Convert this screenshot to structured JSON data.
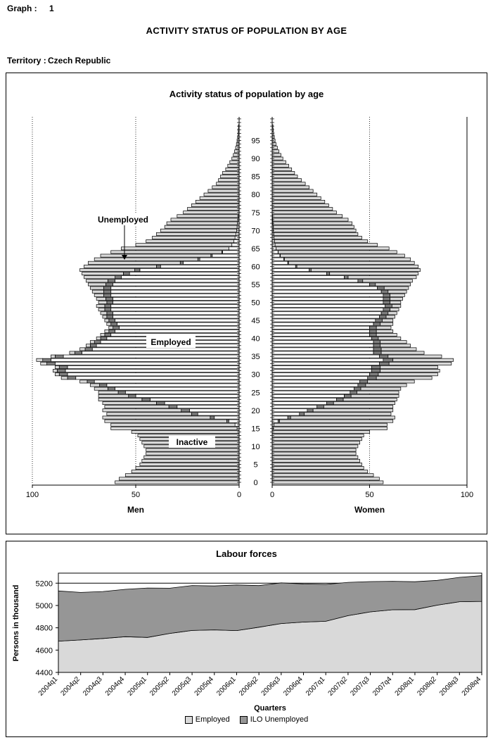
{
  "header": {
    "graph_label": "Graph :",
    "graph_number": "1",
    "main_title": "ACTIVITY STATUS OF POPULATION BY AGE",
    "territory_label": "Territory :",
    "territory_value": "Czech Republic"
  },
  "colors": {
    "inactive_fill": "#D9D9D9",
    "employed_fill": "#FFFFFF",
    "unemployed_fill": "#7F7F7F",
    "area_employed": "#D9D9D9",
    "area_unemployed": "#969696",
    "outline": "#000000"
  },
  "chart_data": [
    {
      "type": "bar",
      "subtype": "population-pyramid-stacked",
      "title": "Activity status of population by age",
      "left_label": "Men",
      "right_label": "Women",
      "value_ticks": [
        0,
        50,
        100
      ],
      "xlim": [
        0,
        100
      ],
      "age_min": 0,
      "age_max": 99,
      "age_label_step": 5,
      "age_labels": [
        0,
        5,
        10,
        15,
        20,
        25,
        30,
        35,
        40,
        45,
        50,
        55,
        60,
        65,
        70,
        75,
        80,
        85,
        90,
        95
      ],
      "annotations": [
        "Unemployed",
        "Employed",
        "Inactive"
      ],
      "units": "thousands of persons",
      "men": {
        "total": [
          60,
          58,
          55,
          52,
          50,
          48,
          47,
          46,
          45,
          45,
          46,
          47,
          48,
          49,
          52,
          62,
          62,
          65,
          66,
          64,
          66,
          65,
          66,
          68,
          68,
          68,
          70,
          72,
          77,
          86,
          89,
          90,
          89,
          96,
          98,
          91,
          82,
          77,
          74,
          72,
          69,
          67,
          65,
          63,
          64,
          65,
          66,
          67,
          68,
          69,
          68,
          69,
          70,
          71,
          72,
          73,
          74,
          75,
          76,
          77,
          75,
          73,
          70,
          67,
          62,
          57,
          50,
          45,
          42,
          40,
          38,
          36,
          35,
          33,
          30,
          27,
          25,
          23,
          21,
          19,
          17,
          15,
          13,
          11,
          10,
          9,
          8,
          6.5,
          5.5,
          4.5,
          3.5,
          2.8,
          2.2,
          1.7,
          1.3,
          1,
          0.7,
          0.5,
          0.4,
          0.3
        ],
        "employed": [
          0,
          0,
          0,
          0,
          0,
          0,
          0,
          0,
          0,
          0,
          0,
          0,
          0,
          0,
          0,
          1,
          2,
          5,
          12,
          20,
          24,
          30,
          36,
          43,
          50,
          55,
          60,
          64,
          70,
          79,
          83,
          84,
          83,
          89,
          91,
          85,
          76,
          71,
          69,
          67,
          64,
          62,
          60,
          58,
          59,
          60,
          61,
          61,
          62,
          62,
          61,
          61,
          62,
          62,
          62,
          61,
          60,
          57,
          53,
          48,
          38,
          27,
          19,
          13,
          8,
          5,
          3.5,
          2.5,
          2,
          1.5,
          1.2,
          1,
          0.8,
          0.6,
          0.4,
          0,
          0,
          0,
          0,
          0,
          0,
          0,
          0,
          0,
          0,
          0,
          0,
          0,
          0,
          0,
          0,
          0,
          0,
          0,
          0,
          0,
          0,
          0,
          0,
          0
        ],
        "unemployed": [
          0,
          0,
          0,
          0,
          0,
          0,
          0,
          0,
          0,
          0,
          0,
          0,
          0,
          0,
          0,
          0,
          0,
          1,
          2,
          3,
          4,
          4,
          4,
          4,
          3.5,
          3.5,
          3.5,
          3.5,
          3.5,
          4,
          4,
          4,
          4,
          4,
          4,
          4,
          3.5,
          3.5,
          3,
          3,
          3,
          3,
          3,
          3,
          3,
          3,
          3,
          3,
          3,
          3,
          3,
          3.5,
          3.5,
          3.5,
          3.5,
          3.5,
          3.5,
          3,
          3,
          2.5,
          2,
          1.5,
          1,
          0.7,
          0.4,
          0,
          0,
          0,
          0,
          0,
          0,
          0,
          0,
          0,
          0,
          0,
          0,
          0,
          0,
          0,
          0,
          0,
          0,
          0,
          0,
          0,
          0,
          0,
          0,
          0,
          0,
          0,
          0,
          0,
          0,
          0,
          0,
          0,
          0,
          0
        ]
      },
      "women": {
        "total": [
          57,
          55,
          52,
          49,
          47,
          46,
          45,
          44,
          43,
          43,
          44,
          45,
          46,
          47,
          50,
          59,
          59,
          62,
          63,
          61,
          62,
          62,
          63,
          64,
          65,
          65,
          66,
          69,
          73,
          82,
          85,
          86,
          85,
          92,
          93,
          87,
          78,
          74,
          71,
          69,
          66,
          64,
          62,
          61,
          62,
          62,
          63,
          64,
          65,
          66,
          66,
          67,
          68,
          69,
          70,
          71,
          72,
          74,
          75,
          76,
          75,
          73,
          71,
          68,
          64,
          60,
          54,
          49,
          46,
          44,
          43,
          42,
          41,
          39,
          36,
          33,
          31,
          29,
          27,
          25,
          23,
          21,
          19,
          17,
          15,
          13,
          11.5,
          10,
          8.5,
          7,
          5.5,
          4.5,
          3.5,
          2.7,
          2,
          1.5,
          1.1,
          0.8,
          0.6,
          0.4
        ],
        "employed": [
          0,
          0,
          0,
          0,
          0,
          0,
          0,
          0,
          0,
          0,
          0,
          0,
          0,
          0,
          0,
          0.5,
          1,
          3,
          8,
          14,
          18,
          23,
          28,
          33,
          37,
          40,
          42,
          44,
          45,
          49,
          50,
          51,
          51,
          55,
          57,
          55,
          52,
          52,
          52,
          52,
          51,
          50,
          50,
          50,
          52,
          53,
          55,
          56,
          57,
          58,
          57,
          57,
          57,
          56,
          54,
          50,
          44,
          37,
          28,
          19,
          12,
          8,
          6,
          4,
          3,
          2,
          1.5,
          1.2,
          1,
          0.8,
          0.6,
          0.5,
          0.4,
          0.3,
          0.2,
          0,
          0,
          0,
          0,
          0,
          0,
          0,
          0,
          0,
          0,
          0,
          0,
          0,
          0,
          0,
          0,
          0,
          0,
          0,
          0,
          0,
          0,
          0,
          0,
          0
        ],
        "unemployed": [
          0,
          0,
          0,
          0,
          0,
          0,
          0,
          0,
          0,
          0,
          0,
          0,
          0,
          0,
          0,
          0,
          0,
          0.8,
          1.5,
          2.5,
          3,
          3.5,
          3.5,
          3.5,
          3.5,
          3.5,
          3.5,
          4,
          4,
          4.5,
          4.5,
          4.5,
          4.5,
          5,
          5,
          4.5,
          4,
          4,
          3.5,
          3.5,
          3.5,
          3.5,
          3.5,
          3.5,
          3.5,
          3.5,
          3.5,
          3.5,
          3.5,
          3.5,
          3.5,
          3.5,
          3.5,
          3.5,
          3.5,
          3,
          2.5,
          2,
          1.5,
          1,
          0.7,
          0.4,
          0.3,
          0.2,
          0.1,
          0,
          0,
          0,
          0,
          0,
          0,
          0,
          0,
          0,
          0,
          0,
          0,
          0,
          0,
          0,
          0,
          0,
          0,
          0,
          0,
          0,
          0,
          0,
          0,
          0,
          0,
          0,
          0,
          0,
          0,
          0,
          0,
          0,
          0,
          0
        ]
      }
    },
    {
      "type": "area",
      "stacked": true,
      "title": "Labour forces",
      "ylabel": "Persons in thousand",
      "xlabel": "Quarters",
      "ylim": [
        4400,
        5290
      ],
      "yticks": [
        4400,
        4600,
        4800,
        5000,
        5200
      ],
      "grid_value": 5200,
      "legend_position": "bottom",
      "categories": [
        "2004q1",
        "2004q2",
        "2004q3",
        "2004q4",
        "2005q1",
        "2005q2",
        "2005q3",
        "2005q4",
        "2006q1",
        "2006q2",
        "2006q3",
        "2006q4",
        "2007q1",
        "2007q2",
        "2007q3",
        "2007q4",
        "2008q1",
        "2008q2",
        "2008q3",
        "2008q4"
      ],
      "series": [
        {
          "name": "Employed",
          "values": [
            4680,
            4691,
            4704,
            4720,
            4714,
            4750,
            4776,
            4781,
            4775,
            4805,
            4838,
            4851,
            4858,
            4909,
            4943,
            4962,
            4963,
            5003,
            5034,
            5037
          ]
        },
        {
          "name": "ILO Unemployed",
          "values": [
            450,
            426,
            421,
            425,
            443,
            405,
            403,
            394,
            409,
            373,
            365,
            342,
            331,
            298,
            271,
            255,
            250,
            222,
            218,
            230
          ]
        }
      ]
    }
  ]
}
